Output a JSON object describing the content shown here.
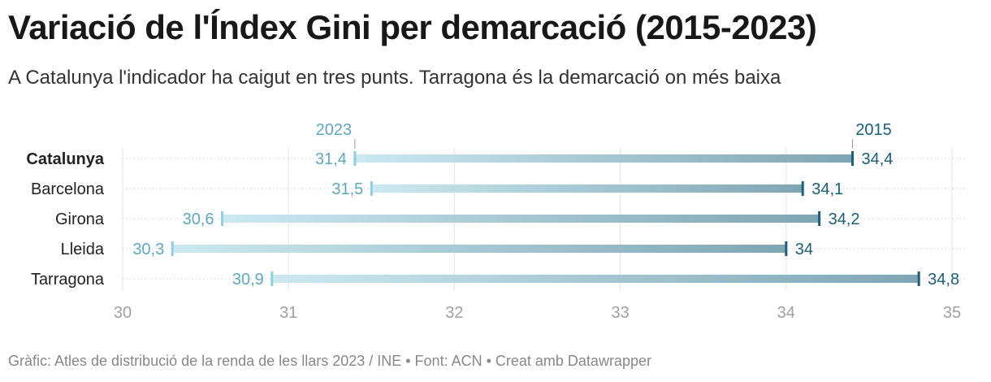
{
  "title": "Variació de l'Índex Gini per demarcació (2015-2023)",
  "subtitle": "A Catalunya l'indicador ha caigut en tres punts. Tarragona és la demarcació on més baixa",
  "footer": "Gràfic: Atles de distribució de la renda de les llars 2023 / INE • Font: ACN • Creat amb Datawrapper",
  "chart_data": {
    "type": "range",
    "categories": [
      "Catalunya",
      "Barcelona",
      "Girona",
      "Lleida",
      "Tarragona"
    ],
    "highlighted": "Catalunya",
    "series": [
      {
        "name": "2023",
        "values": [
          31.4,
          31.5,
          30.6,
          30.3,
          30.9
        ],
        "labels": [
          "31,4",
          "31,5",
          "30,6",
          "30,3",
          "30,9"
        ],
        "color": "#8ecfe0",
        "text_color": "#5fa8be"
      },
      {
        "name": "2015",
        "values": [
          34.4,
          34.1,
          34.2,
          34.0,
          34.8
        ],
        "labels": [
          "34,4",
          "34,1",
          "34,2",
          "34",
          "34,8"
        ],
        "color": "#1b5f78",
        "text_color": "#1b5f78"
      }
    ],
    "xlim": [
      30,
      35
    ],
    "xticks": [
      30,
      31,
      32,
      33,
      34,
      35
    ],
    "xtick_labels": [
      "30",
      "31",
      "32",
      "33",
      "34",
      "35"
    ],
    "grid": true,
    "legend": "inline-top"
  }
}
